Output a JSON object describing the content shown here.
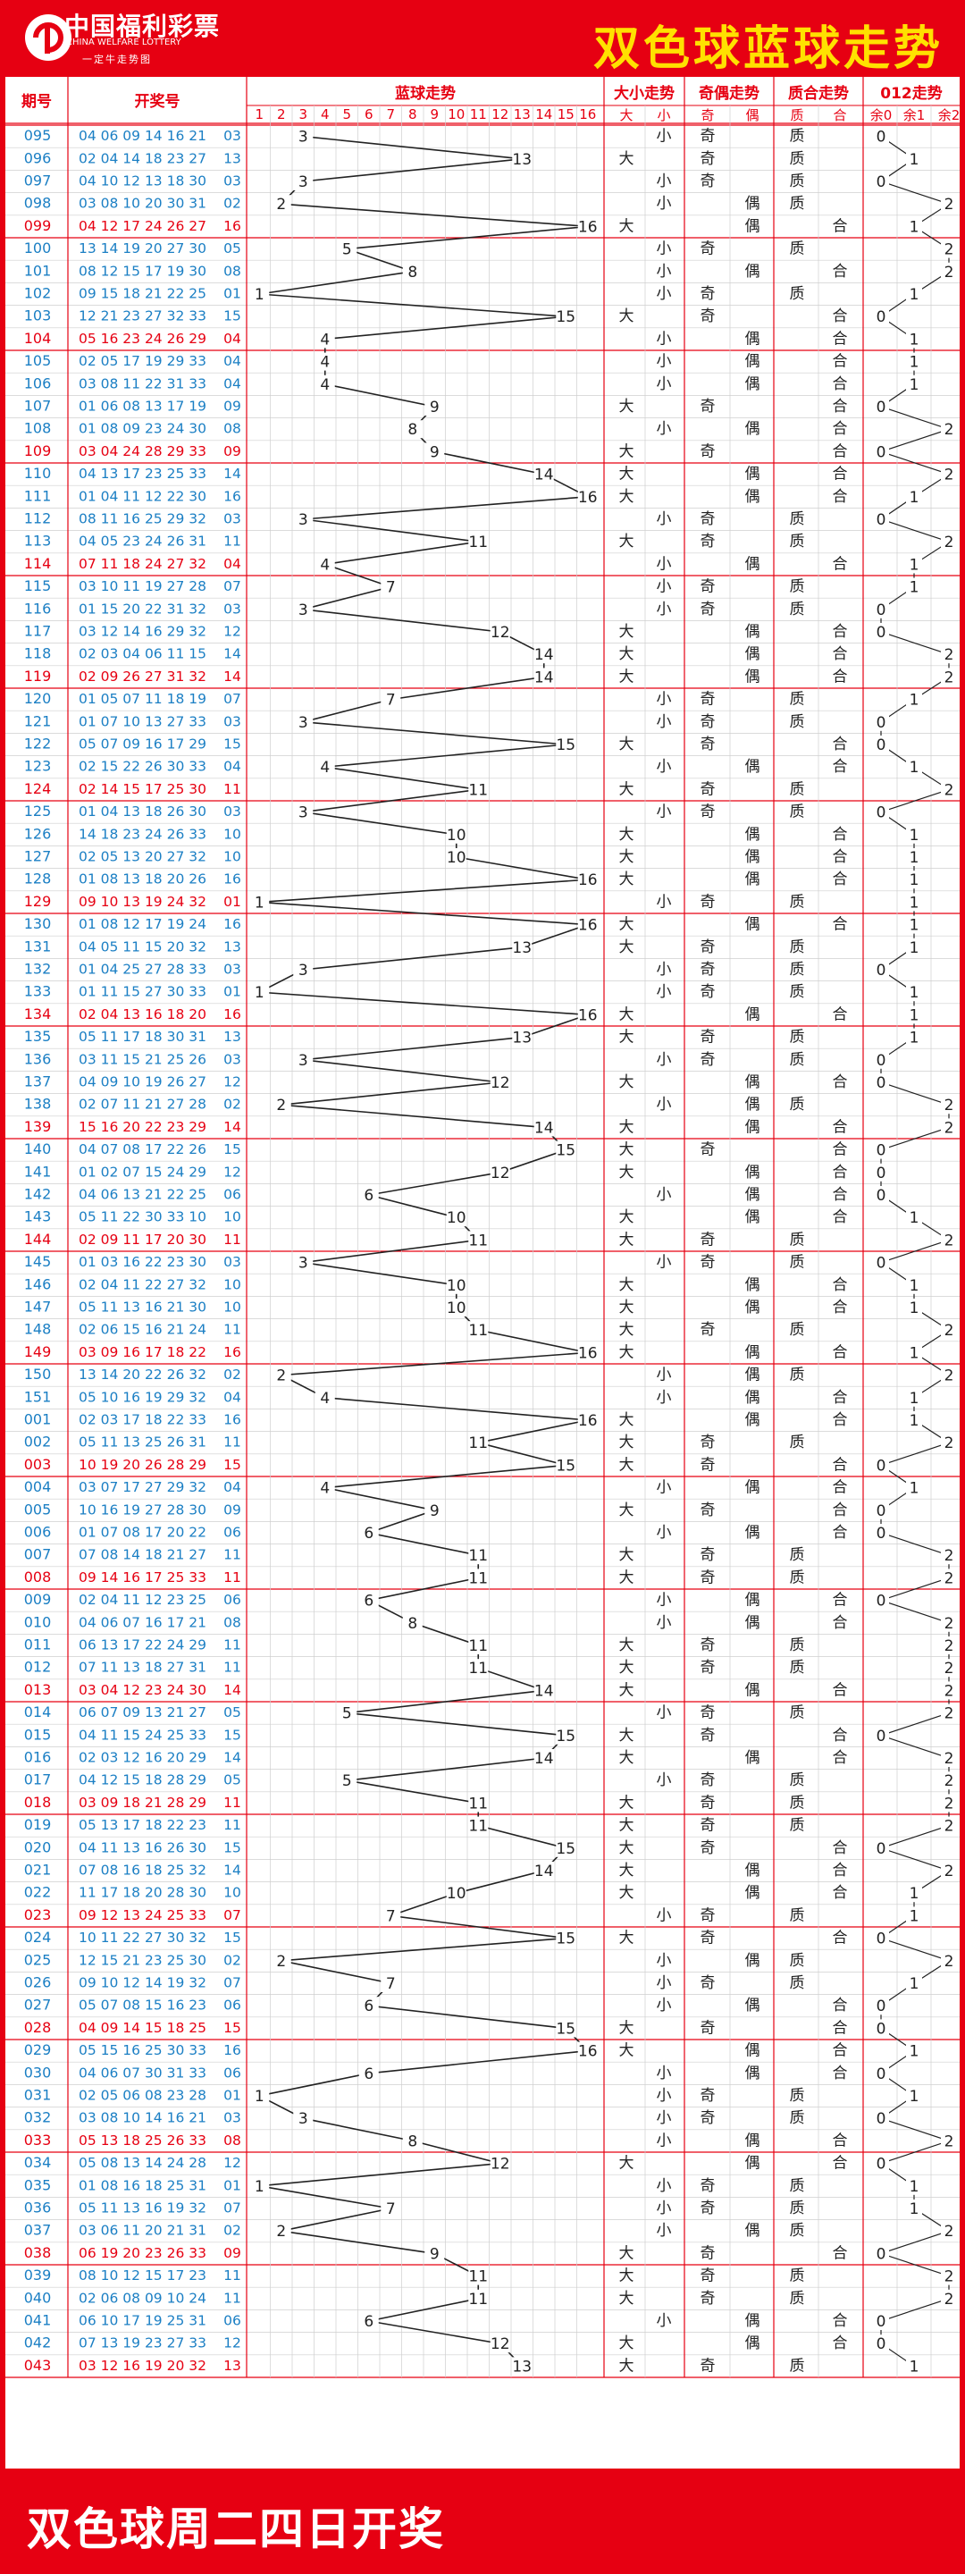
{
  "header": {
    "logo_cn": "中国福利彩票",
    "logo_en": "CHINA WELFARE LOTTERY",
    "logo_sub": "一定牛走势图",
    "title": "双色球蓝球走势"
  },
  "footer": {
    "text": "双色球周二四日开奖"
  },
  "table_header": {
    "period": "期号",
    "numbers": "开奖号",
    "blue_trend": "蓝球走势",
    "size_trend": "大小走势",
    "parity_trend": "奇偶走势",
    "prime_trend": "质合走势",
    "mod3_trend": "012走势",
    "blue_cols": [
      "1",
      "2",
      "3",
      "4",
      "5",
      "6",
      "7",
      "8",
      "9",
      "10",
      "11",
      "12",
      "13",
      "14",
      "15",
      "16"
    ],
    "size_cols": [
      "大",
      "小"
    ],
    "parity_cols": [
      "奇",
      "偶"
    ],
    "prime_cols": [
      "质",
      "合"
    ],
    "mod3_cols": [
      "余0",
      "余1",
      "余2"
    ]
  },
  "colors": {
    "brand_red": "#e60012",
    "title_yellow": "#ffe100",
    "period_blue": "#1b7fc4",
    "grid": "#cfcfcf"
  },
  "chart_data": {
    "type": "table",
    "title": "双色球蓝球走势",
    "rows": [
      {
        "p": "095",
        "r": "04 06 09 14 16 21",
        "b": 3
      },
      {
        "p": "096",
        "r": "02 04 14 18 23 27",
        "b": 13
      },
      {
        "p": "097",
        "r": "04 10 12 13 18 30",
        "b": 3
      },
      {
        "p": "098",
        "r": "03 08 10 20 30 31",
        "b": 2
      },
      {
        "p": "099",
        "r": "04 12 17 24 26 27",
        "b": 16
      },
      {
        "p": "100",
        "r": "13 14 19 20 27 30",
        "b": 5
      },
      {
        "p": "101",
        "r": "08 12 15 17 19 30",
        "b": 8
      },
      {
        "p": "102",
        "r": "09 15 18 21 22 25",
        "b": 1
      },
      {
        "p": "103",
        "r": "12 21 23 27 32 33",
        "b": 15
      },
      {
        "p": "104",
        "r": "05 16 23 24 26 29",
        "b": 4
      },
      {
        "p": "105",
        "r": "02 05 17 19 29 33",
        "b": 4
      },
      {
        "p": "106",
        "r": "03 08 11 22 31 33",
        "b": 4
      },
      {
        "p": "107",
        "r": "01 06 08 13 17 19",
        "b": 9
      },
      {
        "p": "108",
        "r": "01 08 09 23 24 30",
        "b": 8
      },
      {
        "p": "109",
        "r": "03 04 24 28 29 33",
        "b": 9
      },
      {
        "p": "110",
        "r": "04 13 17 23 25 33",
        "b": 14
      },
      {
        "p": "111",
        "r": "01 04 11 12 22 30",
        "b": 16
      },
      {
        "p": "112",
        "r": "08 11 16 25 29 32",
        "b": 3
      },
      {
        "p": "113",
        "r": "04 05 23 24 26 31",
        "b": 11
      },
      {
        "p": "114",
        "r": "07 11 18 24 27 32",
        "b": 4
      },
      {
        "p": "115",
        "r": "03 10 11 19 27 28",
        "b": 7
      },
      {
        "p": "116",
        "r": "01 15 20 22 31 32",
        "b": 3
      },
      {
        "p": "117",
        "r": "03 12 14 16 29 32",
        "b": 12
      },
      {
        "p": "118",
        "r": "02 03 04 06 11 15",
        "b": 14
      },
      {
        "p": "119",
        "r": "02 09 26 27 31 32",
        "b": 14
      },
      {
        "p": "120",
        "r": "01 05 07 11 18 19",
        "b": 7
      },
      {
        "p": "121",
        "r": "01 07 10 13 27 33",
        "b": 3
      },
      {
        "p": "122",
        "r": "05 07 09 16 17 29",
        "b": 15
      },
      {
        "p": "123",
        "r": "02 15 22 26 30 33",
        "b": 4
      },
      {
        "p": "124",
        "r": "02 14 15 17 25 30",
        "b": 11
      },
      {
        "p": "125",
        "r": "01 04 13 18 26 30",
        "b": 3
      },
      {
        "p": "126",
        "r": "14 18 23 24 26 33",
        "b": 10
      },
      {
        "p": "127",
        "r": "02 05 13 20 27 32",
        "b": 10
      },
      {
        "p": "128",
        "r": "01 08 13 18 20 26",
        "b": 16
      },
      {
        "p": "129",
        "r": "09 10 13 19 24 32",
        "b": 1
      },
      {
        "p": "130",
        "r": "01 08 12 17 19 24",
        "b": 16
      },
      {
        "p": "131",
        "r": "04 05 11 15 20 32",
        "b": 13
      },
      {
        "p": "132",
        "r": "01 04 25 27 28 33",
        "b": 3
      },
      {
        "p": "133",
        "r": "01 11 15 27 30 33",
        "b": 1
      },
      {
        "p": "134",
        "r": "02 04 13 16 18 20",
        "b": 16
      },
      {
        "p": "135",
        "r": "05 11 17 18 30 31",
        "b": 13
      },
      {
        "p": "136",
        "r": "03 11 15 21 25 26",
        "b": 3
      },
      {
        "p": "137",
        "r": "04 09 10 19 26 27",
        "b": 12
      },
      {
        "p": "138",
        "r": "02 07 11 21 27 28",
        "b": 2
      },
      {
        "p": "139",
        "r": "15 16 20 22 23 29",
        "b": 14
      },
      {
        "p": "140",
        "r": "04 07 08 17 22 26",
        "b": 15
      },
      {
        "p": "141",
        "r": "01 02 07 15 24 29",
        "b": 12
      },
      {
        "p": "142",
        "r": "04 06 13 21 22 25",
        "b": 6
      },
      {
        "p": "143",
        "r": "05 11 22 30 33 10",
        "b": 10
      },
      {
        "p": "144",
        "r": "02 09 11 17 20 30",
        "b": 11
      },
      {
        "p": "145",
        "r": "01 03 16 22 23 30",
        "b": 3
      },
      {
        "p": "146",
        "r": "02 04 11 22 27 32",
        "b": 10
      },
      {
        "p": "147",
        "r": "05 11 13 16 21 30",
        "b": 10
      },
      {
        "p": "148",
        "r": "02 06 15 16 21 24",
        "b": 11
      },
      {
        "p": "149",
        "r": "03 09 16 17 18 22",
        "b": 16
      },
      {
        "p": "150",
        "r": "13 14 20 22 26 32",
        "b": 2
      },
      {
        "p": "151",
        "r": "05 10 16 19 29 32",
        "b": 4
      },
      {
        "p": "001",
        "r": "02 03 17 18 22 33",
        "b": 16
      },
      {
        "p": "002",
        "r": "05 11 13 25 26 31",
        "b": 11
      },
      {
        "p": "003",
        "r": "10 19 20 26 28 29",
        "b": 15
      },
      {
        "p": "004",
        "r": "03 07 17 27 29 32",
        "b": 4
      },
      {
        "p": "005",
        "r": "10 16 19 27 28 30",
        "b": 9
      },
      {
        "p": "006",
        "r": "01 07 08 17 20 22",
        "b": 6
      },
      {
        "p": "007",
        "r": "07 08 14 18 21 27",
        "b": 11
      },
      {
        "p": "008",
        "r": "09 14 16 17 25 33",
        "b": 11
      },
      {
        "p": "009",
        "r": "02 04 11 12 23 25",
        "b": 6
      },
      {
        "p": "010",
        "r": "04 06 07 16 17 21",
        "b": 8
      },
      {
        "p": "011",
        "r": "06 13 17 22 24 29",
        "b": 11
      },
      {
        "p": "012",
        "r": "07 11 13 18 27 31",
        "b": 11
      },
      {
        "p": "013",
        "r": "03 04 12 23 24 30",
        "b": 14
      },
      {
        "p": "014",
        "r": "06 07 09 13 21 27",
        "b": 5
      },
      {
        "p": "015",
        "r": "04 11 15 24 25 33",
        "b": 15
      },
      {
        "p": "016",
        "r": "02 03 12 16 20 29",
        "b": 14
      },
      {
        "p": "017",
        "r": "04 12 15 18 28 29",
        "b": 5
      },
      {
        "p": "018",
        "r": "03 09 18 21 28 29",
        "b": 11
      },
      {
        "p": "019",
        "r": "05 13 17 18 22 23",
        "b": 11
      },
      {
        "p": "020",
        "r": "04 11 13 16 26 30",
        "b": 15
      },
      {
        "p": "021",
        "r": "07 08 16 18 25 32",
        "b": 14
      },
      {
        "p": "022",
        "r": "11 17 18 20 28 30",
        "b": 10
      },
      {
        "p": "023",
        "r": "09 12 13 24 25 33",
        "b": 7
      },
      {
        "p": "024",
        "r": "10 11 22 27 30 32",
        "b": 15
      },
      {
        "p": "025",
        "r": "12 15 21 23 25 30",
        "b": 2
      },
      {
        "p": "026",
        "r": "09 10 12 14 19 32",
        "b": 7
      },
      {
        "p": "027",
        "r": "05 07 08 15 16 23",
        "b": 6
      },
      {
        "p": "028",
        "r": "04 09 14 15 18 25",
        "b": 15
      },
      {
        "p": "029",
        "r": "05 15 16 25 30 33",
        "b": 16
      },
      {
        "p": "030",
        "r": "04 06 07 30 31 33",
        "b": 6
      },
      {
        "p": "031",
        "r": "02 05 06 08 23 28",
        "b": 1
      },
      {
        "p": "032",
        "r": "03 08 10 14 16 21",
        "b": 3
      },
      {
        "p": "033",
        "r": "05 13 18 25 26 33",
        "b": 8
      },
      {
        "p": "034",
        "r": "05 08 13 14 24 28",
        "b": 12
      },
      {
        "p": "035",
        "r": "01 08 16 18 25 31",
        "b": 1
      },
      {
        "p": "036",
        "r": "05 11 13 16 19 32",
        "b": 7
      },
      {
        "p": "037",
        "r": "03 06 11 20 21 31",
        "b": 2
      },
      {
        "p": "038",
        "r": "06 19 20 23 26 33",
        "b": 9
      },
      {
        "p": "039",
        "r": "08 10 12 15 17 23",
        "b": 11
      },
      {
        "p": "040",
        "r": "02 06 08 09 10 24",
        "b": 11
      },
      {
        "p": "041",
        "r": "06 10 17 19 25 31",
        "b": 6
      },
      {
        "p": "042",
        "r": "07 13 19 23 27 33",
        "b": 12
      },
      {
        "p": "043",
        "r": "03 12 16 19 20 32",
        "b": 13
      }
    ]
  }
}
